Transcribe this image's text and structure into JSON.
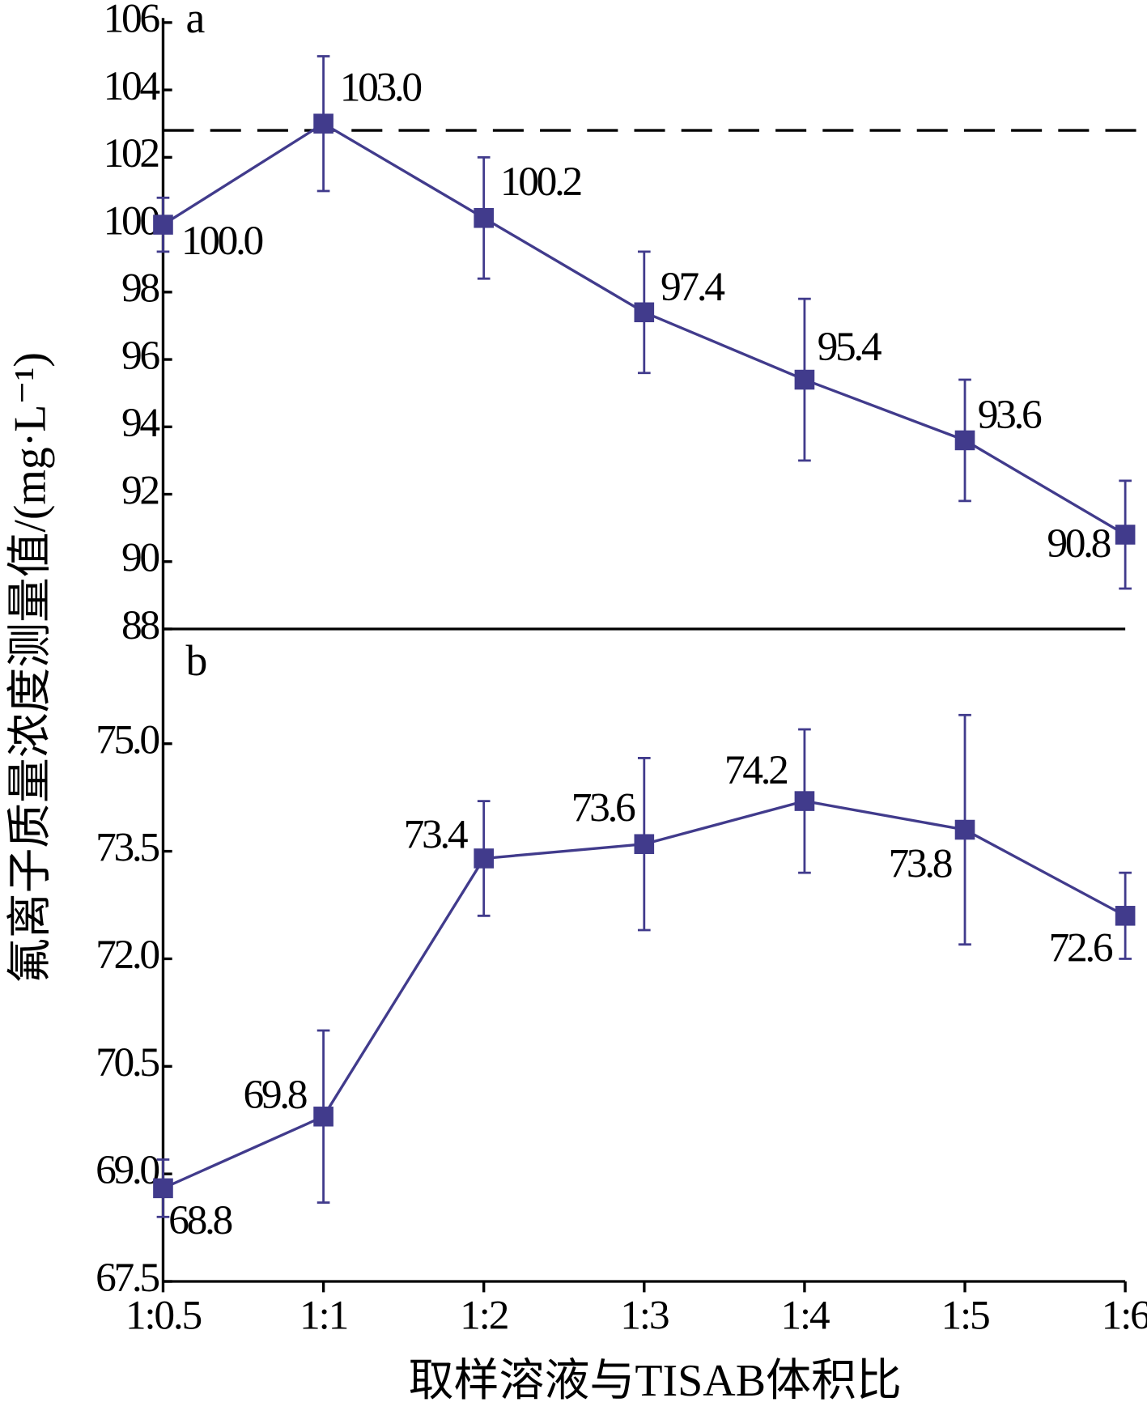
{
  "y_label": "氟离子质量浓度测量值/(mg·L⁻¹)",
  "x_label": "取样溶液与TISAB体积比",
  "chart_data": [
    {
      "type": "line",
      "panel_label": "a",
      "color": "#413b8c",
      "values": [
        100.0,
        103.0,
        100.2,
        97.4,
        95.4,
        93.6,
        90.8
      ],
      "value_labels": [
        "100.0",
        "103.0",
        "100.2",
        "97.4",
        "95.4",
        "93.6",
        "90.8"
      ],
      "errors": [
        0.8,
        2.0,
        1.8,
        1.8,
        2.4,
        1.8,
        1.6
      ],
      "reference_line": 102.8,
      "ylim": [
        88,
        106
      ],
      "yticks": [
        88,
        90,
        92,
        94,
        96,
        98,
        100,
        102,
        104,
        106
      ]
    },
    {
      "type": "line",
      "panel_label": "b",
      "color": "#413b8c",
      "categories": [
        "1:0.5",
        "1:1",
        "1:2",
        "1:3",
        "1:4",
        "1:5",
        "1:6"
      ],
      "values": [
        68.8,
        69.8,
        73.4,
        73.6,
        74.2,
        73.8,
        72.6
      ],
      "errors": [
        0.4,
        1.2,
        0.8,
        1.2,
        1.0,
        1.6,
        0.6
      ],
      "ylim": [
        67.5,
        76.6
      ],
      "yticks": [
        67.5,
        {
          "value": 69,
          "label": "69.0"
        },
        70.5,
        {
          "value": 72,
          "label": "72.0"
        },
        73.5,
        {
          "value": 75,
          "label": "75.0"
        }
      ]
    }
  ]
}
